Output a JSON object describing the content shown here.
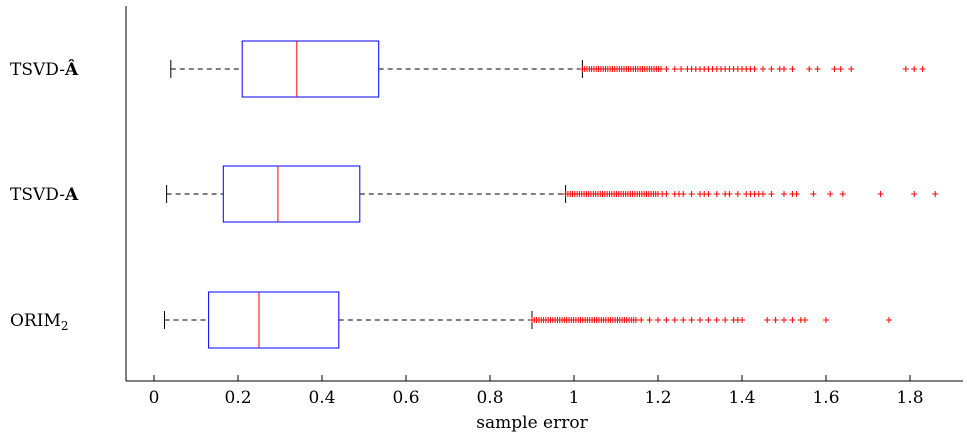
{
  "chart_data": {
    "type": "boxplot",
    "orientation": "horizontal",
    "xlabel": "sample error",
    "xlim": [
      -0.07,
      1.93
    ],
    "xticks": [
      "0",
      "0.2",
      "0.4",
      "0.6",
      "0.8",
      "1",
      "1.2",
      "1.4",
      "1.6",
      "1.8"
    ],
    "xtick_values": [
      0,
      0.2,
      0.4,
      0.6,
      0.8,
      1.0,
      1.2,
      1.4,
      1.6,
      1.8
    ],
    "grid": false,
    "colors": {
      "box": "#0000ff",
      "median": "#ff0000",
      "outlier": "#ff0000",
      "whisker": "#000000"
    },
    "categories": [
      {
        "label": "TSVD-",
        "label_bold": "Â",
        "whisker_low": 0.04,
        "q1": 0.21,
        "median": 0.34,
        "q3": 0.535,
        "whisker_high": 1.02,
        "outlier_dense_range": [
          1.02,
          1.21
        ],
        "outliers": [
          1.22,
          1.24,
          1.255,
          1.27,
          1.28,
          1.29,
          1.3,
          1.31,
          1.32,
          1.33,
          1.34,
          1.35,
          1.36,
          1.37,
          1.38,
          1.39,
          1.4,
          1.41,
          1.42,
          1.43,
          1.45,
          1.47,
          1.49,
          1.5,
          1.52,
          1.56,
          1.58,
          1.62,
          1.635,
          1.66,
          1.79,
          1.81,
          1.83
        ]
      },
      {
        "label": "TSVD-",
        "label_bold": "A",
        "whisker_low": 0.03,
        "q1": 0.165,
        "median": 0.295,
        "q3": 0.49,
        "whisker_high": 0.98,
        "outlier_dense_range": [
          0.98,
          1.2
        ],
        "outliers": [
          1.21,
          1.22,
          1.24,
          1.25,
          1.26,
          1.28,
          1.3,
          1.31,
          1.32,
          1.34,
          1.36,
          1.37,
          1.39,
          1.41,
          1.42,
          1.43,
          1.44,
          1.45,
          1.47,
          1.5,
          1.52,
          1.53,
          1.57,
          1.61,
          1.64,
          1.73,
          1.81,
          1.86
        ]
      },
      {
        "label": "ORIM",
        "label_sub": "2",
        "whisker_low": 0.025,
        "q1": 0.13,
        "median": 0.25,
        "q3": 0.44,
        "whisker_high": 0.9,
        "outlier_dense_range": [
          0.9,
          1.15
        ],
        "outliers": [
          1.16,
          1.18,
          1.2,
          1.22,
          1.24,
          1.26,
          1.28,
          1.3,
          1.32,
          1.34,
          1.36,
          1.38,
          1.39,
          1.4,
          1.46,
          1.48,
          1.5,
          1.52,
          1.54,
          1.55,
          1.6,
          1.75
        ]
      }
    ]
  }
}
